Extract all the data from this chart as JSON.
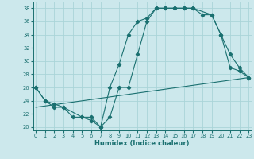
{
  "xlabel": "Humidex (Indice chaleur)",
  "xlim": [
    -0.3,
    23.3
  ],
  "ylim": [
    19.5,
    39.0
  ],
  "yticks": [
    20,
    22,
    24,
    26,
    28,
    30,
    32,
    34,
    36,
    38
  ],
  "xticks": [
    0,
    1,
    2,
    3,
    4,
    5,
    6,
    7,
    8,
    9,
    10,
    11,
    12,
    13,
    14,
    15,
    16,
    17,
    18,
    19,
    20,
    21,
    22,
    23
  ],
  "background_color": "#cce8ec",
  "line_color": "#1a7070",
  "grid_color": "#aad4d8",
  "line1_x": [
    0,
    1,
    2,
    3,
    4,
    5,
    6,
    7,
    8,
    9,
    10,
    11,
    12,
    13,
    14,
    15,
    16,
    17,
    18,
    19,
    20,
    21,
    22,
    23
  ],
  "line1_y": [
    26,
    24,
    23,
    23,
    21.5,
    21.5,
    21,
    20,
    26,
    29.5,
    34,
    36,
    36.5,
    38,
    38,
    38,
    38,
    38,
    37,
    37,
    34,
    29,
    28.5,
    27.5
  ],
  "line2_x": [
    0,
    1,
    2,
    3,
    5,
    6,
    7,
    8,
    9,
    10,
    11,
    12,
    13,
    14,
    15,
    16,
    17,
    19,
    20,
    21,
    22,
    23
  ],
  "line2_y": [
    26,
    24,
    23.5,
    23,
    21.5,
    21.5,
    20,
    21.5,
    26,
    26,
    31,
    36,
    38,
    38,
    38,
    38,
    38,
    37,
    34,
    31,
    29,
    27.5
  ],
  "line3_x": [
    0,
    23
  ],
  "line3_y": [
    23,
    27.5
  ]
}
